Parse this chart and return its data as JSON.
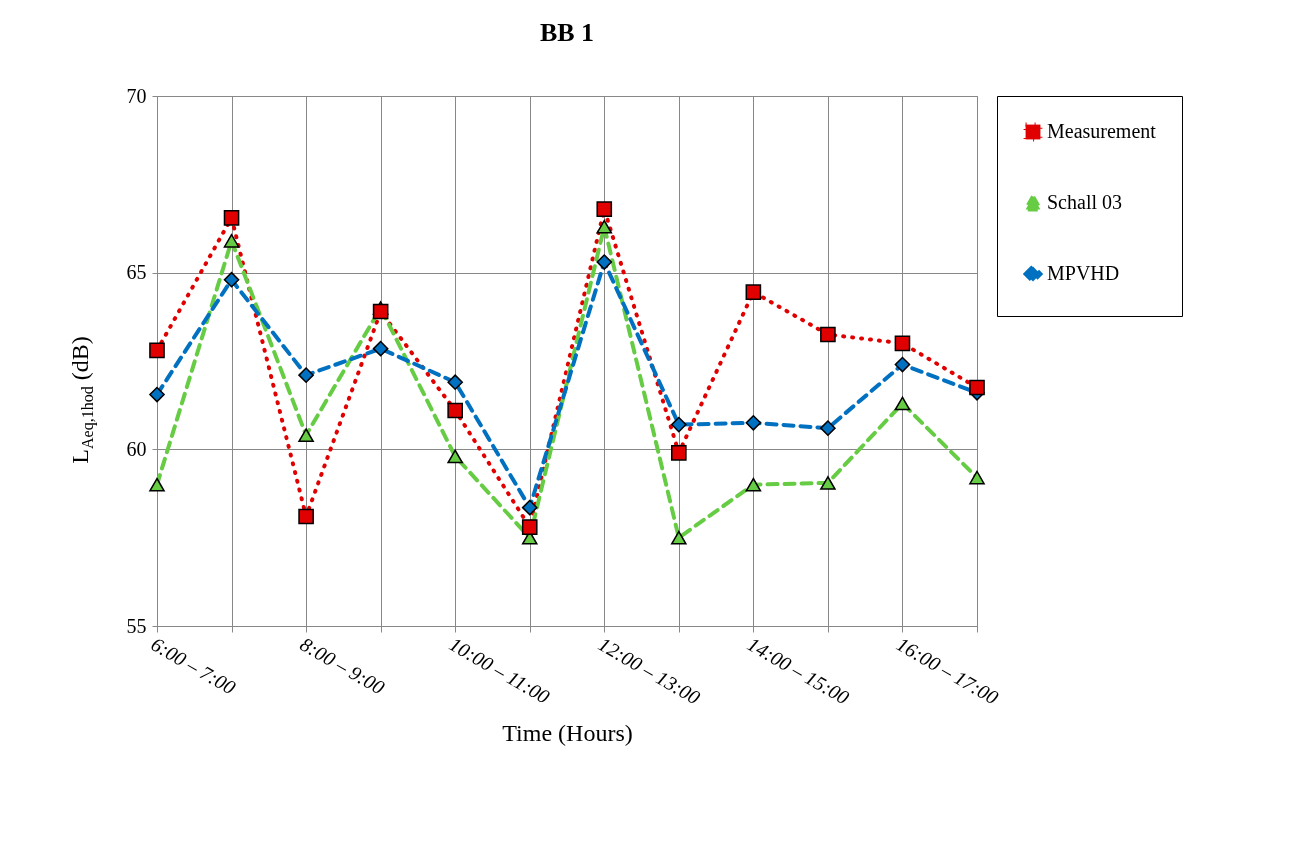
{
  "chart_data": {
    "type": "line",
    "title": "BB 1",
    "xlabel": "Time (Hours)",
    "ylabel": "L$_{Aeq,1hod}$ (dB)",
    "categories": [
      "6:00 – 7:00",
      null,
      "8:00 – 9:00",
      null,
      "10:00 – 11:00",
      null,
      "12:00 – 13:00",
      null,
      "14:00 – 15:00",
      null,
      "16:00 – 17:00",
      null
    ],
    "series": [
      {
        "name": "Measurement",
        "color": "#e00000",
        "marker": "square",
        "line_style": "dotted",
        "values": [
          62.8,
          66.55,
          58.1,
          63.9,
          61.1,
          57.8,
          66.8,
          59.9,
          64.45,
          63.25,
          63.0,
          61.75
        ]
      },
      {
        "name": "Schall 03",
        "color": "#66cc44",
        "marker": "triangle",
        "line_style": "dashed",
        "values": [
          59.0,
          65.9,
          60.4,
          64.0,
          59.8,
          57.5,
          66.3,
          57.5,
          59.0,
          59.05,
          61.3,
          59.2
        ]
      },
      {
        "name": "MPVHD",
        "color": "#0070c0",
        "marker": "diamond",
        "line_style": "dashed",
        "values": [
          61.55,
          64.8,
          62.1,
          62.85,
          61.9,
          58.35,
          65.3,
          60.7,
          60.75,
          60.6,
          62.4,
          61.6
        ]
      }
    ],
    "ylim": [
      55,
      70
    ],
    "yticks": [
      55,
      60,
      65,
      70
    ],
    "grid": true,
    "legend": "right"
  }
}
